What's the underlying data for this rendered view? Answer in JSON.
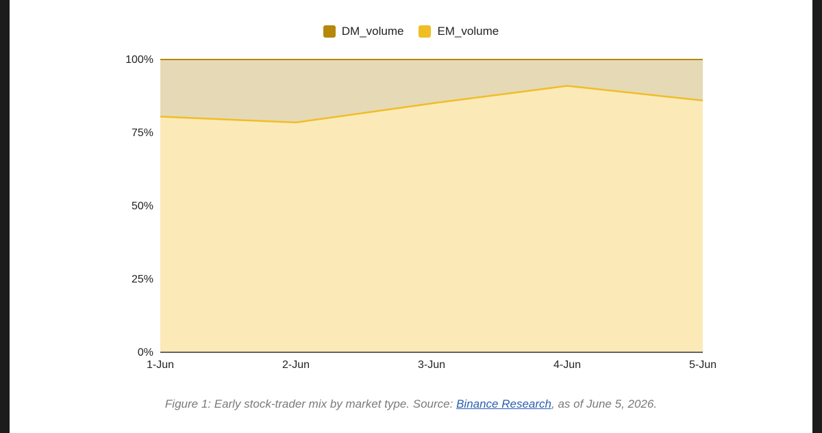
{
  "chart_data": {
    "type": "area",
    "stacked": true,
    "normalized": true,
    "categories": [
      "1-Jun",
      "2-Jun",
      "3-Jun",
      "4-Jun",
      "5-Jun"
    ],
    "series": [
      {
        "name": "DM_volume",
        "values": [
          19.5,
          21.5,
          15.0,
          9.0,
          14.0
        ],
        "color": "#b5880a",
        "fill": "#e6d9b6"
      },
      {
        "name": "EM_volume",
        "values": [
          80.5,
          78.5,
          85.0,
          91.0,
          86.0
        ],
        "color": "#f0bd25",
        "fill": "#fbeab8"
      }
    ],
    "ylim": [
      0,
      100
    ],
    "yticks": [
      {
        "value": 0,
        "label": "0%"
      },
      {
        "value": 25,
        "label": "25%"
      },
      {
        "value": 50,
        "label": "50%"
      },
      {
        "value": 75,
        "label": "75%"
      },
      {
        "value": 100,
        "label": "100%"
      }
    ],
    "grid": true,
    "legend_position": "top-center"
  },
  "caption": {
    "prefix": "Figure 1: Early stock-trader mix by market type. Source: ",
    "link_text": "Binance Research",
    "suffix": ", as of June 5, 2026."
  }
}
